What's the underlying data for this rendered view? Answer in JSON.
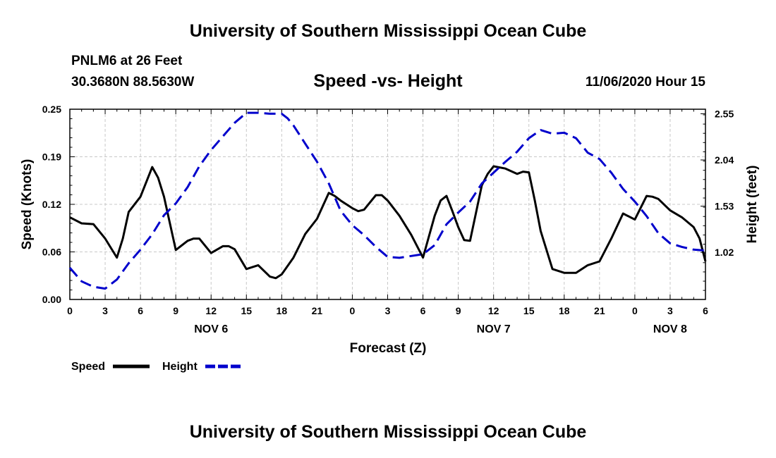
{
  "header": {
    "title": "University of Southern Mississippi Ocean Cube"
  },
  "footer": {
    "title": "University of Southern Mississippi Ocean Cube"
  },
  "station": {
    "name": "PNLM6 at 26 Feet",
    "coords": "30.3680N 88.5630W"
  },
  "chart_data": {
    "type": "line",
    "title": "Speed -vs- Height",
    "date": "11/06/2020 Hour 15",
    "xlabel": "Forecast (Z)",
    "ylabel": "Speed (Knots)",
    "y2label": "Height (feet)",
    "xlim": [
      0,
      54
    ],
    "ylim": [
      0,
      0.25
    ],
    "y2lim": [
      0.5,
      2.6
    ],
    "x_ticks": [
      {
        "x": 0,
        "label": "0"
      },
      {
        "x": 3,
        "label": "3"
      },
      {
        "x": 6,
        "label": "6"
      },
      {
        "x": 9,
        "label": "9"
      },
      {
        "x": 12,
        "label": "12"
      },
      {
        "x": 15,
        "label": "15"
      },
      {
        "x": 18,
        "label": "18"
      },
      {
        "x": 21,
        "label": "21"
      },
      {
        "x": 24,
        "label": "0"
      },
      {
        "x": 27,
        "label": "3"
      },
      {
        "x": 30,
        "label": "6"
      },
      {
        "x": 33,
        "label": "9"
      },
      {
        "x": 36,
        "label": "12"
      },
      {
        "x": 39,
        "label": "15"
      },
      {
        "x": 42,
        "label": "18"
      },
      {
        "x": 45,
        "label": "21"
      },
      {
        "x": 48,
        "label": "0"
      },
      {
        "x": 51,
        "label": "3"
      },
      {
        "x": 54,
        "label": "6"
      }
    ],
    "day_labels": [
      {
        "x": 12,
        "label": "NOV 6"
      },
      {
        "x": 36,
        "label": "NOV 7"
      },
      {
        "x": 51,
        "label": "NOV 8"
      }
    ],
    "y_ticks": [
      {
        "value": 0.0,
        "label": "0.00"
      },
      {
        "value": 0.0625,
        "label": "0.06"
      },
      {
        "value": 0.125,
        "label": "0.12"
      },
      {
        "value": 0.1875,
        "label": "0.19"
      },
      {
        "value": 0.25,
        "label": "0.25"
      }
    ],
    "y2_ticks": [
      {
        "value": 1.02,
        "label": "1.02"
      },
      {
        "value": 1.53,
        "label": "1.53"
      },
      {
        "value": 2.04,
        "label": "2.04"
      },
      {
        "value": 2.55,
        "label": "2.55"
      }
    ],
    "grid": true,
    "legend_position": "bottom-left",
    "series": [
      {
        "name": "Speed",
        "axis": "left",
        "color": "#000000",
        "style": "solid",
        "x": [
          0,
          1,
          2,
          3,
          4,
          4.5,
          5,
          6,
          7,
          7.5,
          8,
          9,
          10,
          10.5,
          11,
          12,
          13,
          13.5,
          14,
          15,
          16,
          17,
          17.5,
          18,
          19,
          20,
          21,
          22,
          22.5,
          23,
          24,
          24.5,
          25,
          26,
          26.5,
          27,
          28,
          29,
          30,
          31,
          31.5,
          32,
          32.5,
          33,
          33.5,
          34,
          35,
          35.5,
          36,
          37,
          38,
          38.5,
          39,
          39.5,
          40,
          41,
          42,
          43,
          44,
          45,
          46,
          47,
          48,
          49,
          49.5,
          50,
          51,
          52,
          53,
          53.5,
          54
        ],
        "y": [
          0.108,
          0.1,
          0.099,
          0.08,
          0.055,
          0.08,
          0.115,
          0.135,
          0.174,
          0.16,
          0.135,
          0.065,
          0.077,
          0.08,
          0.08,
          0.061,
          0.07,
          0.07,
          0.066,
          0.04,
          0.045,
          0.03,
          0.028,
          0.033,
          0.055,
          0.086,
          0.106,
          0.14,
          0.136,
          0.13,
          0.12,
          0.116,
          0.118,
          0.137,
          0.137,
          0.13,
          0.11,
          0.085,
          0.055,
          0.11,
          0.13,
          0.136,
          0.116,
          0.095,
          0.078,
          0.077,
          0.15,
          0.165,
          0.175,
          0.172,
          0.165,
          0.168,
          0.167,
          0.13,
          0.09,
          0.04,
          0.035,
          0.035,
          0.045,
          0.05,
          0.08,
          0.113,
          0.105,
          0.136,
          0.135,
          0.132,
          0.117,
          0.108,
          0.095,
          0.08,
          0.05
        ]
      },
      {
        "name": "Height",
        "axis": "right",
        "color": "#0000cc",
        "style": "dashed",
        "x": [
          0,
          1,
          2,
          3,
          4,
          5,
          6,
          7,
          8,
          9,
          10,
          11,
          12,
          13,
          14,
          15,
          16,
          17,
          18,
          18.5,
          19,
          20,
          21,
          22,
          23,
          24,
          25,
          26,
          27,
          28,
          29,
          30,
          31,
          32,
          33,
          34,
          35,
          36,
          37,
          38,
          39,
          40,
          41,
          42,
          43,
          44,
          45,
          46,
          47,
          48,
          49,
          50,
          51,
          52,
          53,
          54
        ],
        "y": [
          0.85,
          0.7,
          0.64,
          0.62,
          0.72,
          0.9,
          1.05,
          1.22,
          1.43,
          1.56,
          1.74,
          1.97,
          2.15,
          2.3,
          2.45,
          2.56,
          2.56,
          2.55,
          2.55,
          2.5,
          2.42,
          2.22,
          2.02,
          1.78,
          1.48,
          1.32,
          1.21,
          1.08,
          0.97,
          0.96,
          0.98,
          1.0,
          1.1,
          1.33,
          1.46,
          1.58,
          1.78,
          1.9,
          2.02,
          2.13,
          2.28,
          2.37,
          2.33,
          2.34,
          2.28,
          2.12,
          2.05,
          1.9,
          1.72,
          1.58,
          1.42,
          1.23,
          1.12,
          1.08,
          1.05,
          1.04
        ]
      }
    ]
  }
}
